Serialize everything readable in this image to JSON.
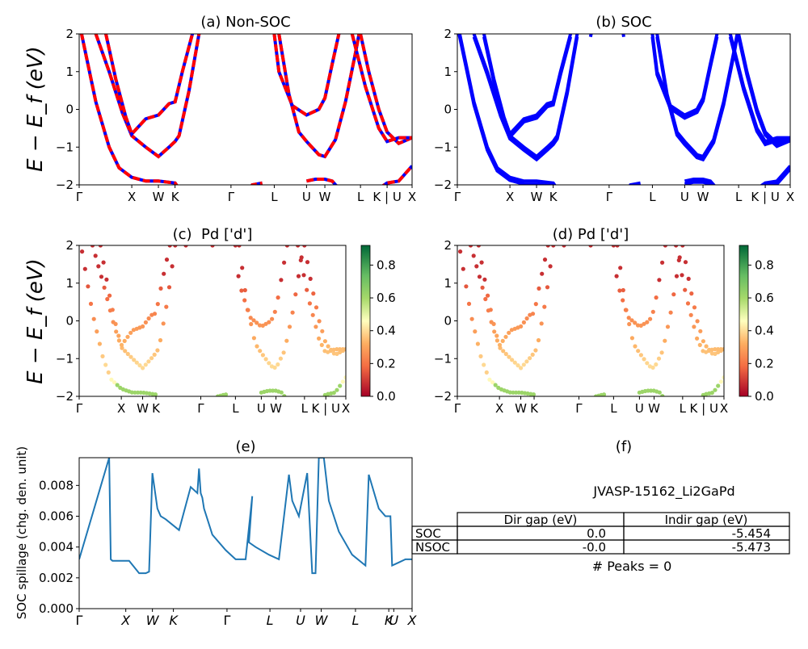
{
  "chart_data": [
    {
      "type": "line",
      "title": "(a) Non-SOC",
      "ylabel": "E − E_f (eV)",
      "ylim": [
        -2,
        2
      ],
      "yticks": [
        "2",
        "1",
        "0",
        "−1",
        "−2"
      ],
      "xticks": [
        "Γ",
        "X",
        "W",
        "K",
        "Γ",
        "L",
        "U",
        "W",
        "L",
        "K | U",
        "X"
      ],
      "series": [
        {
          "color": "#0000ff",
          "style": "solid"
        },
        {
          "color": "#ff0000",
          "style": "dashed"
        }
      ],
      "bands_ev": [
        [
          2.0,
          0.2,
          -0.6,
          -0.9,
          -1.1,
          -1.2,
          -1.0,
          -0.75,
          2.0
        ],
        [
          2.0,
          -0.2,
          -0.7,
          -0.25,
          -0.1,
          0.2,
          2.0
        ],
        [
          2.0,
          0.6,
          0.0,
          -0.2,
          -0.15,
          0.3,
          2.0
        ],
        [
          2.0,
          -0.3,
          -0.9,
          -1.25,
          -0.9,
          0.1,
          2.0
        ],
        [
          -1.5,
          -1.9,
          -1.95,
          -1.9,
          -1.5
        ],
        [
          -1.9,
          -1.85,
          -1.95,
          -1.85,
          -1.9
        ]
      ]
    },
    {
      "type": "line",
      "title": "(b) SOC",
      "ylim": [
        -2,
        2
      ],
      "yticks": [
        "2",
        "1",
        "0",
        "−1",
        "−2"
      ],
      "xticks": [
        "Γ",
        "X",
        "W",
        "K",
        "Γ",
        "L",
        "U",
        "W",
        "L",
        "K | U",
        "X"
      ],
      "series": [
        {
          "color": "#0000ff",
          "style": "solid"
        }
      ]
    },
    {
      "type": "scatter",
      "title": "(c)  Pd ['d']",
      "ylabel": "E − E_f (eV)",
      "ylim": [
        -2,
        2
      ],
      "yticks": [
        "2",
        "1",
        "0",
        "−1",
        "−2"
      ],
      "xticks": [
        "Γ",
        "X",
        "W",
        "K",
        "Γ",
        "L",
        "U",
        "W",
        "L",
        "K | U",
        "X"
      ],
      "colorbar": {
        "colormap": "RdYlGn",
        "ticks": [
          "0.8",
          "0.6",
          "0.4",
          "0.2",
          "0.0"
        ],
        "range": [
          0,
          0.92
        ]
      }
    },
    {
      "type": "scatter",
      "title": "(d) Pd ['d']",
      "ylim": [
        -2,
        2
      ],
      "yticks": [
        "2",
        "1",
        "0",
        "−1",
        "−2"
      ],
      "xticks": [
        "Γ",
        "X",
        "W",
        "K",
        "Γ",
        "L",
        "U",
        "W",
        "L",
        "K | U",
        "X"
      ],
      "colorbar": {
        "colormap": "RdYlGn",
        "ticks": [
          "0.8",
          "0.6",
          "0.4",
          "0.2",
          "0.0"
        ],
        "range": [
          0,
          0.92
        ]
      }
    },
    {
      "type": "line",
      "title": "(e)",
      "ylabel": "SOC spillage (chg. den. unit)",
      "ylim": [
        0,
        0.0098
      ],
      "yticks": [
        "0.008",
        "0.006",
        "0.004",
        "0.002",
        "0.000"
      ],
      "xticks": [
        "Γ",
        "X",
        "W",
        "K",
        "Γ",
        "L",
        "U",
        "W",
        "L",
        "K",
        "U",
        "X"
      ],
      "series": [
        {
          "color": "#1f77b4",
          "style": "solid"
        }
      ],
      "x": [
        0,
        0.09,
        0.095,
        0.1,
        0.12,
        0.15,
        0.18,
        0.2,
        0.21,
        0.22,
        0.235,
        0.245,
        0.26,
        0.3,
        0.335,
        0.355,
        0.36,
        0.365,
        0.37,
        0.375,
        0.4,
        0.44,
        0.47,
        0.5,
        0.52,
        0.51,
        0.53,
        0.57,
        0.6,
        0.63,
        0.64,
        0.66,
        0.685,
        0.7,
        0.71,
        0.72,
        0.735,
        0.75,
        0.78,
        0.82,
        0.86,
        0.87,
        0.9,
        0.92,
        0.935,
        0.94,
        0.95,
        0.96,
        0.98,
        1.0
      ],
      "y": [
        0.0032,
        0.0098,
        0.0032,
        0.0031,
        0.0031,
        0.0031,
        0.0023,
        0.0023,
        0.0024,
        0.0088,
        0.0065,
        0.006,
        0.0058,
        0.0051,
        0.0079,
        0.0075,
        0.0091,
        0.0075,
        0.0072,
        0.0065,
        0.0048,
        0.0038,
        0.0032,
        0.0032,
        0.0073,
        0.0043,
        0.004,
        0.0035,
        0.0032,
        0.0087,
        0.007,
        0.006,
        0.0088,
        0.0023,
        0.0023,
        0.0098,
        0.0098,
        0.007,
        0.005,
        0.0035,
        0.0028,
        0.0087,
        0.0065,
        0.006,
        0.006,
        0.0028,
        0.0029,
        0.003,
        0.0032,
        0.0032
      ]
    },
    {
      "type": "table",
      "title": "(f)",
      "material": "JVASP-15162_Li2GaPd",
      "columns": [
        "Dir gap (eV)",
        "Indir gap (eV)"
      ],
      "rows": [
        {
          "label": "SOC",
          "dir": "0.0",
          "indir": "-5.454"
        },
        {
          "label": "NSOC",
          "dir": "-0.0",
          "indir": "-5.473"
        }
      ],
      "footer": "# Peaks = 0"
    }
  ]
}
